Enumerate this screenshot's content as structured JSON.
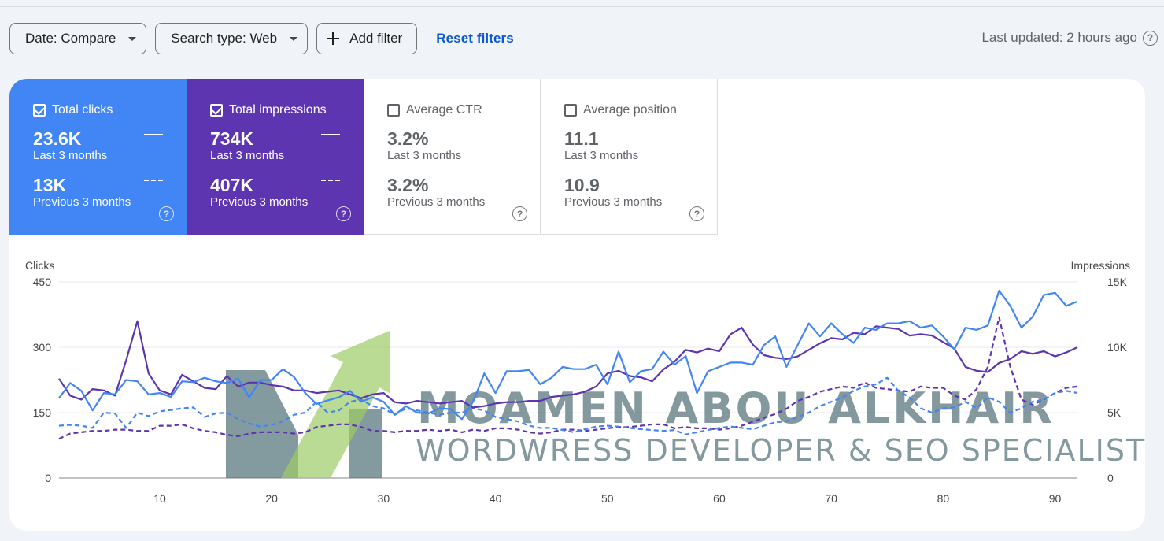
{
  "filters": {
    "date_label": "Date: Compare",
    "search_type_label": "Search type: Web",
    "add_filter_label": "Add filter",
    "reset_label": "Reset filters",
    "last_updated": "Last updated: 2 hours ago"
  },
  "metrics": [
    {
      "label": "Total clicks",
      "checked": true,
      "current": "23.6K",
      "current_period": "Last 3 months",
      "previous": "13K",
      "previous_period": "Previous 3 months",
      "color": "#4285f4"
    },
    {
      "label": "Total impressions",
      "checked": true,
      "current": "734K",
      "current_period": "Last 3 months",
      "previous": "407K",
      "previous_period": "Previous 3 months",
      "color": "#5e35b1"
    },
    {
      "label": "Average CTR",
      "checked": false,
      "current": "3.2%",
      "current_period": "Last 3 months",
      "previous": "3.2%",
      "previous_period": "Previous 3 months"
    },
    {
      "label": "Average position",
      "checked": false,
      "current": "11.1",
      "current_period": "Last 3 months",
      "previous": "10.9",
      "previous_period": "Previous 3 months"
    }
  ],
  "watermark": {
    "title": "MOAMEN ABOU ALKHAIR",
    "subtitle": "WORDWRESS DEVELOPER & SEO SPECIALIST"
  },
  "chart_data": {
    "type": "line",
    "ylabel_left": "Clicks",
    "ylabel_right": "Impressions",
    "y_left_ticks": [
      "0",
      "150",
      "300",
      "450"
    ],
    "y_right_ticks": [
      "0",
      "5K",
      "10K",
      "15K"
    ],
    "y_left_range": [
      0,
      450
    ],
    "y_right_range": [
      0,
      15000
    ],
    "x_ticks": [
      "10",
      "20",
      "30",
      "40",
      "50",
      "60",
      "70",
      "80",
      "90"
    ],
    "x_range": [
      1,
      92
    ],
    "grid": true,
    "series": [
      {
        "name": "Total clicks",
        "period": "Last 3 months",
        "axis": "left",
        "style": "solid",
        "color": "#4285f4",
        "values": [
          183,
          218,
          200,
          155,
          195,
          192,
          225,
          222,
          192,
          195,
          186,
          222,
          220,
          230,
          222,
          218,
          228,
          185,
          225,
          225,
          250,
          232,
          195,
          170,
          178,
          185,
          200,
          175,
          185,
          175,
          145,
          165,
          150,
          148,
          160,
          158,
          135,
          175,
          240,
          195,
          245,
          245,
          248,
          215,
          230,
          255,
          250,
          250,
          260,
          215,
          290,
          220,
          245,
          250,
          290,
          260,
          280,
          195,
          245,
          255,
          265,
          265,
          260,
          305,
          325,
          255,
          305,
          355,
          325,
          355,
          330,
          310,
          345,
          340,
          355,
          355,
          360,
          345,
          350,
          325,
          295,
          345,
          340,
          350,
          430,
          395,
          345,
          370,
          420,
          425,
          395,
          405
        ]
      },
      {
        "name": "Total impressions",
        "period": "Last 3 months",
        "axis": "right",
        "style": "solid",
        "color": "#5e35b1",
        "values": [
          7600,
          6300,
          6000,
          6800,
          6700,
          6300,
          9000,
          12000,
          8000,
          6700,
          6400,
          7900,
          7400,
          6900,
          6800,
          7800,
          7000,
          7300,
          7300,
          7100,
          7000,
          6700,
          6700,
          6500,
          6600,
          6700,
          6400,
          6100,
          6400,
          6500,
          5800,
          5700,
          5900,
          5800,
          5700,
          5800,
          5900,
          5400,
          5500,
          5700,
          5800,
          5800,
          5900,
          5900,
          6200,
          6300,
          6400,
          6600,
          7000,
          8000,
          8200,
          7800,
          7700,
          7400,
          8300,
          8900,
          9800,
          9600,
          9900,
          9700,
          11000,
          11500,
          10200,
          9400,
          9200,
          9100,
          9300,
          9800,
          10300,
          10700,
          10600,
          11100,
          11000,
          11600,
          11500,
          11400,
          10900,
          11000,
          10900,
          10400,
          9900,
          8500,
          8200,
          8100,
          8800,
          9100,
          9700,
          9500,
          9700,
          9300,
          9600,
          10000
        ]
      },
      {
        "name": "Total clicks",
        "period": "Previous 3 months",
        "axis": "left",
        "style": "dashed",
        "color": "#4285f4",
        "values": [
          120,
          122,
          120,
          115,
          150,
          148,
          115,
          150,
          142,
          153,
          156,
          160,
          162,
          140,
          148,
          150,
          135,
          125,
          118,
          122,
          130,
          145,
          150,
          175,
          150,
          155,
          175,
          180,
          165,
          160,
          145,
          160,
          155,
          150,
          145,
          150,
          150,
          160,
          155,
          140,
          135,
          130,
          120,
          115,
          115,
          110,
          105,
          112,
          118,
          120,
          118,
          115,
          112,
          110,
          108,
          110,
          100,
          105,
          110,
          115,
          118,
          115,
          112,
          120,
          128,
          130,
          140,
          150,
          165,
          175,
          185,
          200,
          210,
          215,
          230,
          200,
          185,
          160,
          150,
          160,
          162,
          175,
          160,
          185,
          175,
          150,
          160,
          175,
          180,
          195,
          200,
          195
        ]
      },
      {
        "name": "Total impressions",
        "period": "Previous 3 months",
        "axis": "right",
        "style": "dashed",
        "color": "#5e35b1",
        "values": [
          3000,
          3400,
          3500,
          3600,
          3600,
          3700,
          3700,
          3600,
          3600,
          4000,
          4000,
          4100,
          3800,
          3600,
          3500,
          3300,
          3200,
          3400,
          3500,
          3500,
          3500,
          3400,
          3500,
          3900,
          4000,
          4100,
          4100,
          3900,
          3600,
          3600,
          3500,
          3600,
          3600,
          3700,
          3600,
          3700,
          3500,
          3700,
          3600,
          3800,
          3800,
          3700,
          3500,
          3400,
          3500,
          3700,
          3700,
          3600,
          3700,
          3800,
          3900,
          3900,
          4000,
          4100,
          4100,
          3800,
          3900,
          3800,
          3800,
          3700,
          3800,
          4000,
          4300,
          4600,
          4900,
          5300,
          5900,
          6200,
          6600,
          6800,
          7000,
          6900,
          7300,
          6900,
          6800,
          6700,
          6600,
          7000,
          6900,
          6900,
          6300,
          6000,
          6800,
          8500,
          12300,
          8500,
          6000,
          5600,
          6000,
          6500,
          6900,
          7000
        ]
      }
    ]
  }
}
